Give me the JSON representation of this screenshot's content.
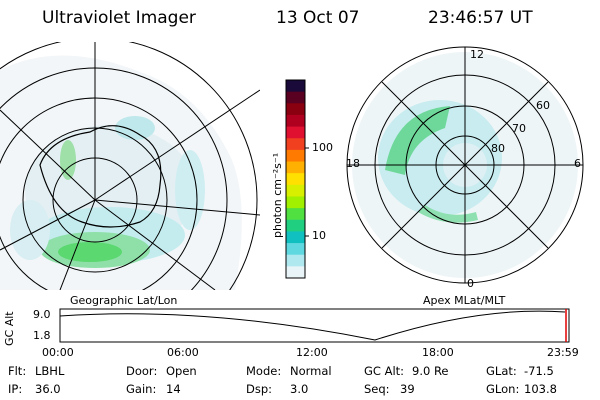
{
  "header": {
    "instrument": "Ultraviolet Imager",
    "date": "13 Oct 07",
    "time": "23:46:57 UT"
  },
  "panels": {
    "left_label": "Geographic Lat/Lon",
    "right_label": "Apex MLat/MLT"
  },
  "right_plot": {
    "mlt_labels": {
      "top": "12",
      "left": "18",
      "right": "6",
      "bottom": "0"
    },
    "lat_labels": [
      "60",
      "70",
      "80"
    ]
  },
  "colorbar": {
    "unit_label": "photon cm⁻²s⁻¹",
    "ticks": [
      "100",
      "10"
    ],
    "colors": [
      "#1a0a3a",
      "#5a0020",
      "#8a0010",
      "#b00020",
      "#e01030",
      "#f04020",
      "#ff7a00",
      "#ffb000",
      "#ffe000",
      "#d8f000",
      "#a0f000",
      "#50e040",
      "#20d080",
      "#10c0c0",
      "#60d8e0",
      "#b0e8f0",
      "#e8f4f8"
    ]
  },
  "altitude_plot": {
    "ylabel": "GC Alt",
    "yticks": [
      "9.0",
      "1.8"
    ],
    "xticks": [
      "00:00",
      "06:00",
      "12:00",
      "18:00",
      "23:59"
    ]
  },
  "info": {
    "row1": [
      {
        "label": "Flt:",
        "value": "LBHL"
      },
      {
        "label": "Door:",
        "value": "Open"
      },
      {
        "label": "Mode:",
        "value": "Normal"
      },
      {
        "label": "GC Alt:",
        "value": "9.0 Re"
      },
      {
        "label": "GLat:",
        "value": "-71.5"
      }
    ],
    "row2": [
      {
        "label": "IP:",
        "value": "36.0"
      },
      {
        "label": "Gain:",
        "value": "14"
      },
      {
        "label": "Dsp:",
        "value": "3.0"
      },
      {
        "label": "Seq:",
        "value": "39"
      },
      {
        "label": "GLon:",
        "value": "103.8"
      }
    ]
  }
}
